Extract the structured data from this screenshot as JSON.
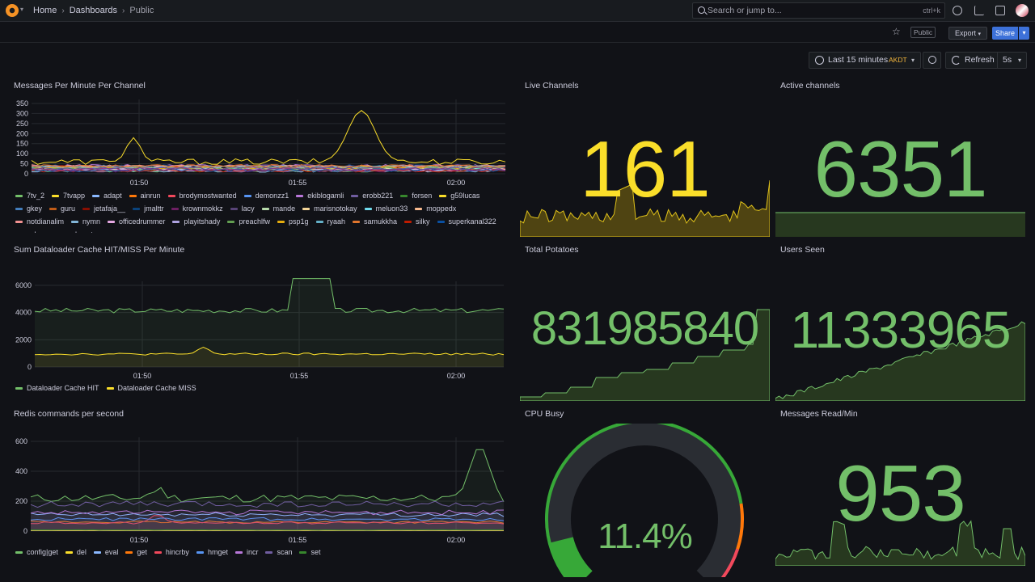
{
  "nav": {
    "breadcrumb": [
      "Home",
      "Dashboards",
      "Public"
    ],
    "search_placeholder": "Search or jump to...",
    "search_shortcut": "ctrl+k"
  },
  "toolbar": {
    "public_badge": "Public",
    "export_label": "Export",
    "share_label": "Share",
    "time_range": "Last 15 minutes",
    "timezone": "AKDT",
    "refresh_label": "Refresh",
    "refresh_interval": "5s"
  },
  "panels": {
    "messages": {
      "title": "Messages Per Minute Per Channel",
      "y_ticks": [
        "350",
        "300",
        "250",
        "200",
        "150",
        "100",
        "50",
        "0"
      ],
      "x_ticks": [
        "01:50",
        "01:55",
        "02:00"
      ],
      "legend": [
        {
          "name": "7tv_2",
          "color": "#73bf69"
        },
        {
          "name": "7tvapp",
          "color": "#fade2a"
        },
        {
          "name": "adapt",
          "color": "#8ab8ff"
        },
        {
          "name": "ainrun",
          "color": "#ff780a"
        },
        {
          "name": "brodymostwanted",
          "color": "#f2495c"
        },
        {
          "name": "demonzz1",
          "color": "#5794f2"
        },
        {
          "name": "ekiblogamli",
          "color": "#b877d9"
        },
        {
          "name": "erobb221",
          "color": "#705da0"
        },
        {
          "name": "forsen",
          "color": "#37872d"
        },
        {
          "name": "g59lucas",
          "color": "#fade2a"
        },
        {
          "name": "gkey",
          "color": "#447ebc"
        },
        {
          "name": "guru",
          "color": "#c15c17"
        },
        {
          "name": "jetafaja__",
          "color": "#890f02"
        },
        {
          "name": "jmalttr",
          "color": "#0a437c"
        },
        {
          "name": "krownmokkz",
          "color": "#6d1f62"
        },
        {
          "name": "lacy",
          "color": "#584477"
        },
        {
          "name": "mande",
          "color": "#b7dbab"
        },
        {
          "name": "marisnotokay",
          "color": "#f4d598"
        },
        {
          "name": "meluon33",
          "color": "#70dbed"
        },
        {
          "name": "moppedx",
          "color": "#f9ba8f"
        },
        {
          "name": "notdianalim",
          "color": "#f29191"
        },
        {
          "name": "nymn",
          "color": "#82b5d8"
        },
        {
          "name": "officedrummer",
          "color": "#e5a8e2"
        },
        {
          "name": "playitshady",
          "color": "#aea2e0"
        },
        {
          "name": "preachlfw",
          "color": "#629e51"
        },
        {
          "name": "psp1g",
          "color": "#e5ac0e"
        },
        {
          "name": "ryaah",
          "color": "#64b0c8"
        },
        {
          "name": "samukkha",
          "color": "#e0752d"
        },
        {
          "name": "silky",
          "color": "#bf1b00"
        },
        {
          "name": "superkanal322",
          "color": "#0a50a1"
        },
        {
          "name": "velcuz",
          "color": "#962d82"
        },
        {
          "name": "wakeuptune",
          "color": "#614d93"
        }
      ]
    },
    "live_channels": {
      "title": "Live Channels",
      "value": "161",
      "color": "#fade2a"
    },
    "active_channels": {
      "title": "Active channels",
      "value": "6351",
      "color": "#73bf69"
    },
    "dataloader": {
      "title": "Sum Dataloader Cache HIT/MISS Per Minute",
      "y_ticks": [
        "6000",
        "4000",
        "2000",
        "0"
      ],
      "x_ticks": [
        "01:50",
        "01:55",
        "02:00"
      ],
      "legend": [
        {
          "name": "Dataloader Cache HIT",
          "color": "#73bf69"
        },
        {
          "name": "Dataloader Cache MISS",
          "color": "#fade2a"
        }
      ]
    },
    "total_potatoes": {
      "title": "Total Potatoes",
      "value": "831985840",
      "color": "#73bf69"
    },
    "users_seen": {
      "title": "Users Seen",
      "value": "11333965",
      "color": "#73bf69"
    },
    "redis": {
      "title": "Redis commands per second",
      "y_ticks": [
        "600",
        "400",
        "200",
        "0"
      ],
      "x_ticks": [
        "01:50",
        "01:55",
        "02:00"
      ],
      "legend": [
        {
          "name": "config|get",
          "color": "#73bf69"
        },
        {
          "name": "del",
          "color": "#fade2a"
        },
        {
          "name": "eval",
          "color": "#8ab8ff"
        },
        {
          "name": "get",
          "color": "#ff780a"
        },
        {
          "name": "hincrby",
          "color": "#f2495c"
        },
        {
          "name": "hmget",
          "color": "#5794f2"
        },
        {
          "name": "incr",
          "color": "#b877d9"
        },
        {
          "name": "scan",
          "color": "#705da0"
        },
        {
          "name": "set",
          "color": "#37872d"
        }
      ]
    },
    "cpu": {
      "title": "CPU Busy",
      "value": "11.4%",
      "percent": 11.4,
      "color": "#73bf69"
    },
    "messages_read": {
      "title": "Messages Read/Min",
      "value": "953",
      "color": "#73bf69"
    }
  }
}
